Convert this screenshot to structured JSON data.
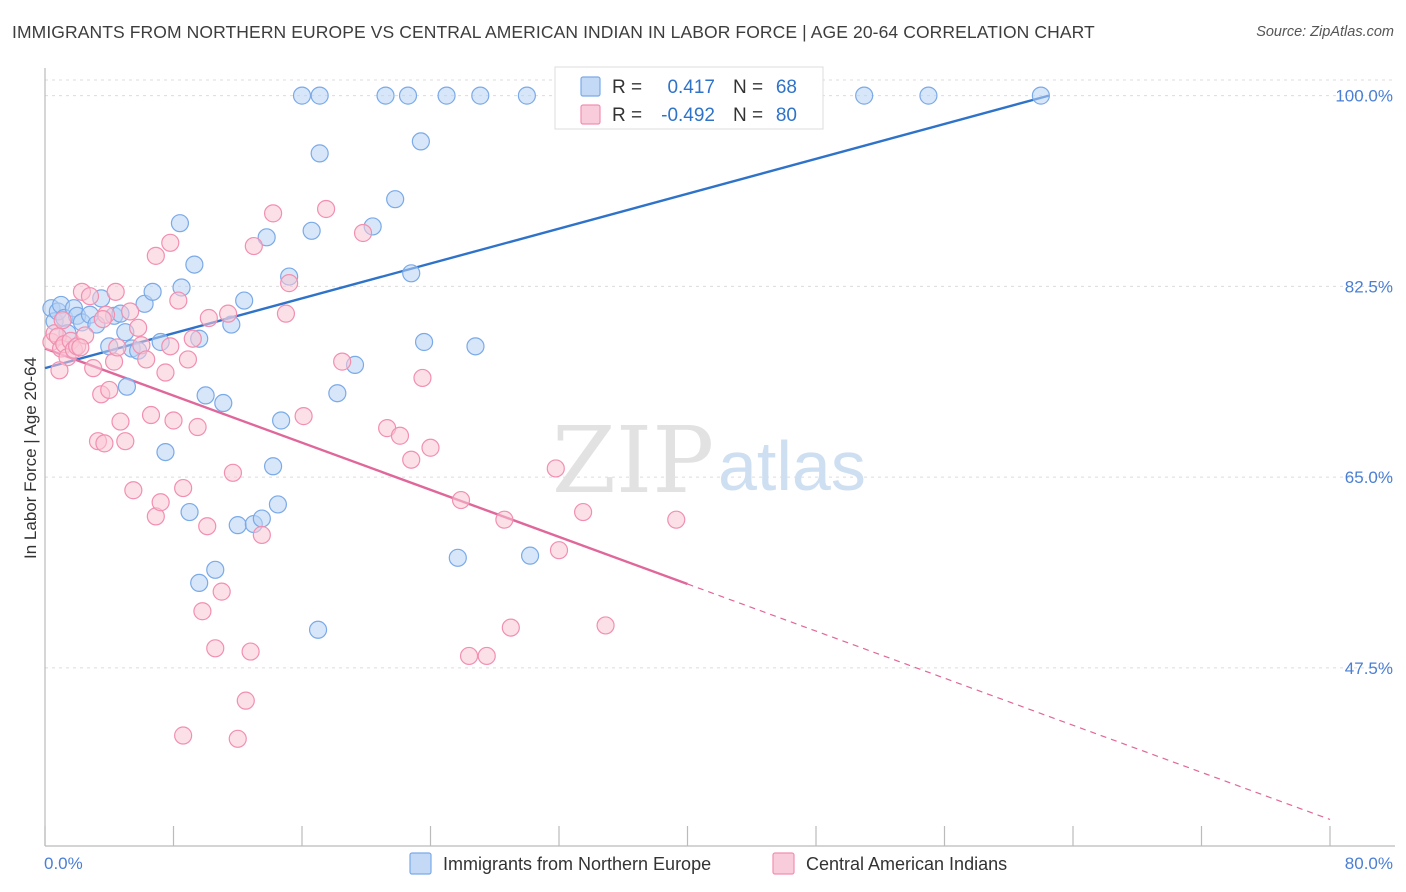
{
  "header": {
    "title": "IMMIGRANTS FROM NORTHERN EUROPE VS CENTRAL AMERICAN INDIAN IN LABOR FORCE | AGE 20-64 CORRELATION CHART",
    "source": "Source: ZipAtlas.com"
  },
  "watermark": {
    "zip": "ZIP",
    "atlas": "atlas"
  },
  "legend_top": {
    "rows": [
      {
        "r_label": "R =",
        "r_value": "0.417",
        "n_label": "N =",
        "n_value": "68",
        "color": "#7aaae8"
      },
      {
        "r_label": "R =",
        "r_value": "-0.492",
        "n_label": "N =",
        "n_value": "80",
        "color": "#f28fb0"
      }
    ]
  },
  "chart_data": {
    "type": "scatter",
    "title": "IMMIGRANTS FROM NORTHERN EUROPE VS CENTRAL AMERICAN INDIAN IN LABOR FORCE | AGE 20-64 CORRELATION CHART",
    "xlabel": "",
    "ylabel": "In Labor Force | Age 20-64",
    "xlim": [
      0,
      80
    ],
    "ylim": [
      33.0,
      101.8
    ],
    "x_tick_labels": [
      "0.0%",
      "80.0%"
    ],
    "y_ticks": [
      47.5,
      65.0,
      82.5,
      100.0
    ],
    "y_tick_labels": [
      "47.5%",
      "65.0%",
      "82.5%",
      "100.0%"
    ],
    "grid": true,
    "legend_position": "top-center",
    "series": [
      {
        "name": "Immigrants from Northern Europe",
        "color": "#7aaae8",
        "fill": "#b8d2f4",
        "line_color": "#2f73c9",
        "trend": {
          "x": [
            0,
            62.5
          ],
          "y": [
            75.0,
            100.0
          ]
        },
        "points": [
          [
            0.4,
            80.5
          ],
          [
            0.6,
            79.3
          ],
          [
            0.8,
            80.2
          ],
          [
            1.0,
            80.8
          ],
          [
            1.2,
            79.6
          ],
          [
            1.4,
            78.2
          ],
          [
            1.8,
            80.5
          ],
          [
            2.0,
            79.8
          ],
          [
            2.3,
            79.2
          ],
          [
            2.8,
            79.9
          ],
          [
            3.2,
            79.0
          ],
          [
            3.5,
            81.4
          ],
          [
            4.0,
            77.0
          ],
          [
            4.3,
            79.8
          ],
          [
            4.7,
            80.0
          ],
          [
            5.0,
            78.3
          ],
          [
            5.4,
            76.8
          ],
          [
            5.8,
            76.6
          ],
          [
            6.2,
            80.9
          ],
          [
            6.7,
            82.0
          ],
          [
            7.2,
            77.4
          ],
          [
            7.5,
            67.3
          ],
          [
            8.5,
            82.4
          ],
          [
            9.0,
            61.8
          ],
          [
            9.3,
            84.5
          ],
          [
            9.6,
            77.7
          ],
          [
            10.0,
            72.5
          ],
          [
            10.6,
            56.5
          ],
          [
            11.1,
            71.8
          ],
          [
            11.6,
            79.0
          ],
          [
            12.0,
            60.6
          ],
          [
            12.4,
            81.2
          ],
          [
            13.0,
            60.7
          ],
          [
            13.5,
            61.2
          ],
          [
            14.2,
            66.0
          ],
          [
            14.5,
            62.5
          ],
          [
            14.7,
            70.2
          ],
          [
            16.0,
            100.0
          ],
          [
            17.1,
            100.0
          ],
          [
            18.2,
            72.7
          ],
          [
            19.3,
            75.3
          ],
          [
            20.4,
            88.0
          ],
          [
            22.8,
            83.7
          ],
          [
            23.6,
            77.4
          ],
          [
            21.2,
            100.0
          ],
          [
            22.6,
            100.0
          ],
          [
            25.0,
            100.0
          ],
          [
            26.8,
            77.0
          ],
          [
            25.7,
            57.6
          ],
          [
            27.1,
            100.0
          ],
          [
            30.0,
            100.0
          ],
          [
            32.8,
            100.0
          ],
          [
            36.0,
            100.0
          ],
          [
            38.0,
            100.0
          ],
          [
            51.0,
            100.0
          ],
          [
            55.0,
            100.0
          ],
          [
            62.0,
            100.0
          ],
          [
            5.1,
            73.3
          ],
          [
            8.4,
            88.3
          ],
          [
            13.8,
            87.0
          ],
          [
            15.2,
            83.4
          ],
          [
            16.6,
            87.6
          ],
          [
            17.1,
            94.7
          ],
          [
            9.6,
            55.3
          ],
          [
            17.0,
            51.0
          ],
          [
            21.8,
            90.5
          ],
          [
            30.2,
            57.8
          ],
          [
            23.4,
            95.8
          ]
        ]
      },
      {
        "name": "Central American Indians",
        "color": "#f28fb0",
        "fill": "#f9c6d6",
        "line_color": "#e0679a",
        "trend": {
          "x": [
            0,
            40.0
          ],
          "y": [
            76.8,
            55.2
          ]
        },
        "trend_dashed": {
          "x": [
            40.0,
            80.0
          ],
          "y": [
            55.2,
            33.6
          ]
        },
        "points": [
          [
            0.4,
            77.4
          ],
          [
            0.6,
            78.2
          ],
          [
            0.8,
            77.9
          ],
          [
            1.0,
            76.8
          ],
          [
            1.2,
            77.2
          ],
          [
            1.4,
            76.0
          ],
          [
            1.6,
            77.5
          ],
          [
            1.8,
            76.7
          ],
          [
            2.0,
            77.0
          ],
          [
            2.3,
            82.0
          ],
          [
            2.5,
            78.0
          ],
          [
            2.8,
            81.6
          ],
          [
            3.0,
            75.0
          ],
          [
            3.3,
            68.3
          ],
          [
            3.5,
            72.6
          ],
          [
            3.8,
            79.9
          ],
          [
            4.0,
            73.0
          ],
          [
            4.3,
            75.6
          ],
          [
            4.5,
            76.9
          ],
          [
            4.7,
            70.1
          ],
          [
            5.0,
            68.3
          ],
          [
            5.3,
            80.2
          ],
          [
            5.5,
            63.8
          ],
          [
            5.8,
            78.7
          ],
          [
            6.0,
            77.1
          ],
          [
            6.3,
            75.8
          ],
          [
            6.6,
            70.7
          ],
          [
            6.9,
            61.4
          ],
          [
            7.2,
            62.7
          ],
          [
            7.5,
            74.6
          ],
          [
            7.8,
            77.0
          ],
          [
            8.0,
            70.2
          ],
          [
            8.3,
            81.2
          ],
          [
            8.6,
            64.0
          ],
          [
            8.9,
            75.8
          ],
          [
            9.2,
            77.7
          ],
          [
            9.5,
            69.6
          ],
          [
            9.8,
            52.7
          ],
          [
            10.2,
            79.6
          ],
          [
            10.6,
            49.3
          ],
          [
            11.0,
            54.5
          ],
          [
            11.4,
            80.0
          ],
          [
            11.7,
            65.4
          ],
          [
            12.0,
            41.0
          ],
          [
            12.5,
            44.5
          ],
          [
            13.0,
            86.2
          ],
          [
            13.5,
            59.7
          ],
          [
            14.2,
            89.2
          ],
          [
            15.0,
            80.0
          ],
          [
            15.2,
            82.8
          ],
          [
            16.1,
            70.6
          ],
          [
            17.5,
            89.6
          ],
          [
            18.5,
            75.6
          ],
          [
            19.8,
            87.4
          ],
          [
            21.3,
            69.5
          ],
          [
            22.8,
            66.6
          ],
          [
            22.1,
            68.8
          ],
          [
            23.5,
            74.1
          ],
          [
            24.0,
            67.7
          ],
          [
            25.9,
            62.9
          ],
          [
            26.4,
            48.6
          ],
          [
            27.5,
            48.6
          ],
          [
            28.6,
            61.1
          ],
          [
            29.0,
            51.2
          ],
          [
            31.8,
            65.8
          ],
          [
            32.0,
            58.3
          ],
          [
            33.5,
            61.8
          ],
          [
            34.9,
            51.4
          ],
          [
            39.3,
            61.1
          ],
          [
            6.9,
            85.3
          ],
          [
            7.8,
            86.5
          ],
          [
            3.6,
            79.5
          ],
          [
            4.4,
            82.0
          ],
          [
            2.2,
            76.9
          ],
          [
            1.1,
            79.4
          ],
          [
            0.9,
            74.8
          ],
          [
            3.7,
            68.1
          ],
          [
            12.8,
            49.0
          ],
          [
            8.6,
            41.3
          ],
          [
            10.1,
            60.5
          ]
        ]
      }
    ]
  },
  "bottom_legend": {
    "items": [
      {
        "label": "Immigrants from Northern Europe",
        "color": "#7aaae8"
      },
      {
        "label": "Central American Indians",
        "color": "#f28fb0"
      }
    ]
  }
}
